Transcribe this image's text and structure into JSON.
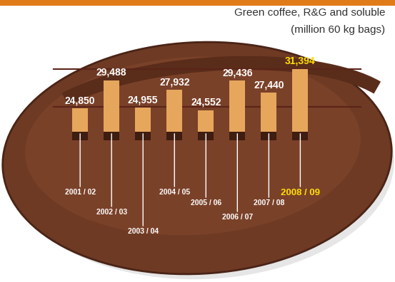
{
  "chart_data": {
    "type": "bar",
    "title": "Green coffee, R&G and soluble",
    "subtitle": "(million 60 kg bags)",
    "categories": [
      "2001 / 02",
      "2002 / 03",
      "2003 / 04",
      "2004 / 05",
      "2005 / 06",
      "2006 / 07",
      "2007 / 08",
      "2008 / 09"
    ],
    "values": [
      24850,
      29488,
      24955,
      27932,
      24552,
      29436,
      27440,
      31394
    ],
    "value_labels": [
      "24,850",
      "29,488",
      "24,955",
      "27,932",
      "24,552",
      "29,436",
      "27,440",
      "31,394"
    ],
    "color": "#e6a75c",
    "ylim": [
      21000,
      33000
    ],
    "data_labels": true,
    "tick_labels": "x"
  }
}
